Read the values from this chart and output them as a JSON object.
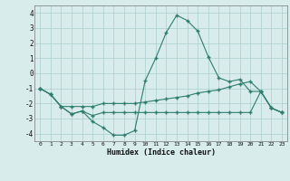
{
  "xlabel": "Humidex (Indice chaleur)",
  "x": [
    0,
    1,
    2,
    3,
    4,
    5,
    6,
    7,
    8,
    9,
    10,
    11,
    12,
    13,
    14,
    15,
    16,
    17,
    18,
    19,
    20,
    21,
    22,
    23
  ],
  "line1": [
    -1.0,
    -1.4,
    -2.2,
    -2.7,
    -2.5,
    -3.2,
    -3.6,
    -4.1,
    -4.1,
    -3.8,
    -0.5,
    1.0,
    2.7,
    3.85,
    3.5,
    2.8,
    1.1,
    -0.3,
    -0.55,
    -0.4,
    -1.2,
    -1.2,
    -2.3,
    -2.6
  ],
  "line2": [
    -1.0,
    -1.4,
    -2.2,
    -2.2,
    -2.2,
    -2.2,
    -2.0,
    -2.0,
    -2.0,
    -2.0,
    -1.9,
    -1.8,
    -1.7,
    -1.6,
    -1.5,
    -1.3,
    -1.2,
    -1.1,
    -0.9,
    -0.7,
    -0.55,
    -1.2,
    -2.3,
    -2.6
  ],
  "line3": [
    -1.0,
    -1.4,
    -2.2,
    -2.7,
    -2.5,
    -2.8,
    -2.6,
    -2.6,
    -2.6,
    -2.6,
    -2.6,
    -2.6,
    -2.6,
    -2.6,
    -2.6,
    -2.6,
    -2.6,
    -2.6,
    -2.6,
    -2.6,
    -2.6,
    -1.2,
    -2.3,
    -2.6
  ],
  "line_color": "#2e7d6e",
  "bg_color": "#d8ecec",
  "grid_color": "#aacece",
  "ylim": [
    -4.5,
    4.5
  ],
  "yticks": [
    -4,
    -3,
    -2,
    -1,
    0,
    1,
    2,
    3,
    4
  ],
  "xticks": [
    0,
    1,
    2,
    3,
    4,
    5,
    6,
    7,
    8,
    9,
    10,
    11,
    12,
    13,
    14,
    15,
    16,
    17,
    18,
    19,
    20,
    21,
    22,
    23
  ]
}
